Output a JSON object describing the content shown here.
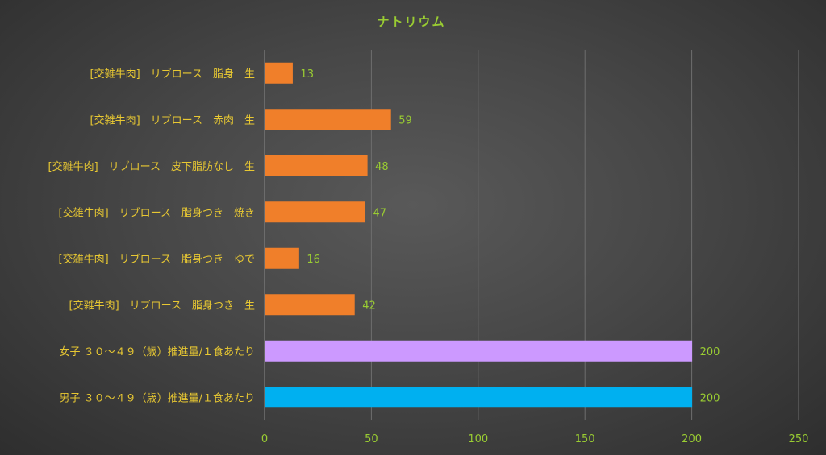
{
  "chart_data": {
    "type": "bar",
    "orientation": "horizontal",
    "title": "ナトリウム",
    "categories": [
      "[交雑牛肉]　リブロース　脂身　生",
      "[交雑牛肉]　リブロース　赤肉　生",
      "[交雑牛肉]　リブロース　皮下脂肪なし　生",
      "[交雑牛肉]　リブロース　脂身つき　焼き",
      "[交雑牛肉]　リブロース　脂身つき　ゆで",
      "[交雑牛肉]　リブロース　脂身つき　生",
      "女子 ３０～４９（歳）推進量/１食あたり",
      "男子 ３０～４９（歳）推進量/１食あたり"
    ],
    "values": [
      13,
      59,
      48,
      47,
      16,
      42,
      200,
      200
    ],
    "bar_colors": [
      "#f07f2a",
      "#f07f2a",
      "#f07f2a",
      "#f07f2a",
      "#f07f2a",
      "#f07f2a",
      "#cc99ff",
      "#00b0f0"
    ],
    "xlim": [
      0,
      250
    ],
    "xticks": [
      0,
      50,
      100,
      150,
      200,
      250
    ],
    "grid": true,
    "xlabel": "",
    "ylabel": ""
  }
}
